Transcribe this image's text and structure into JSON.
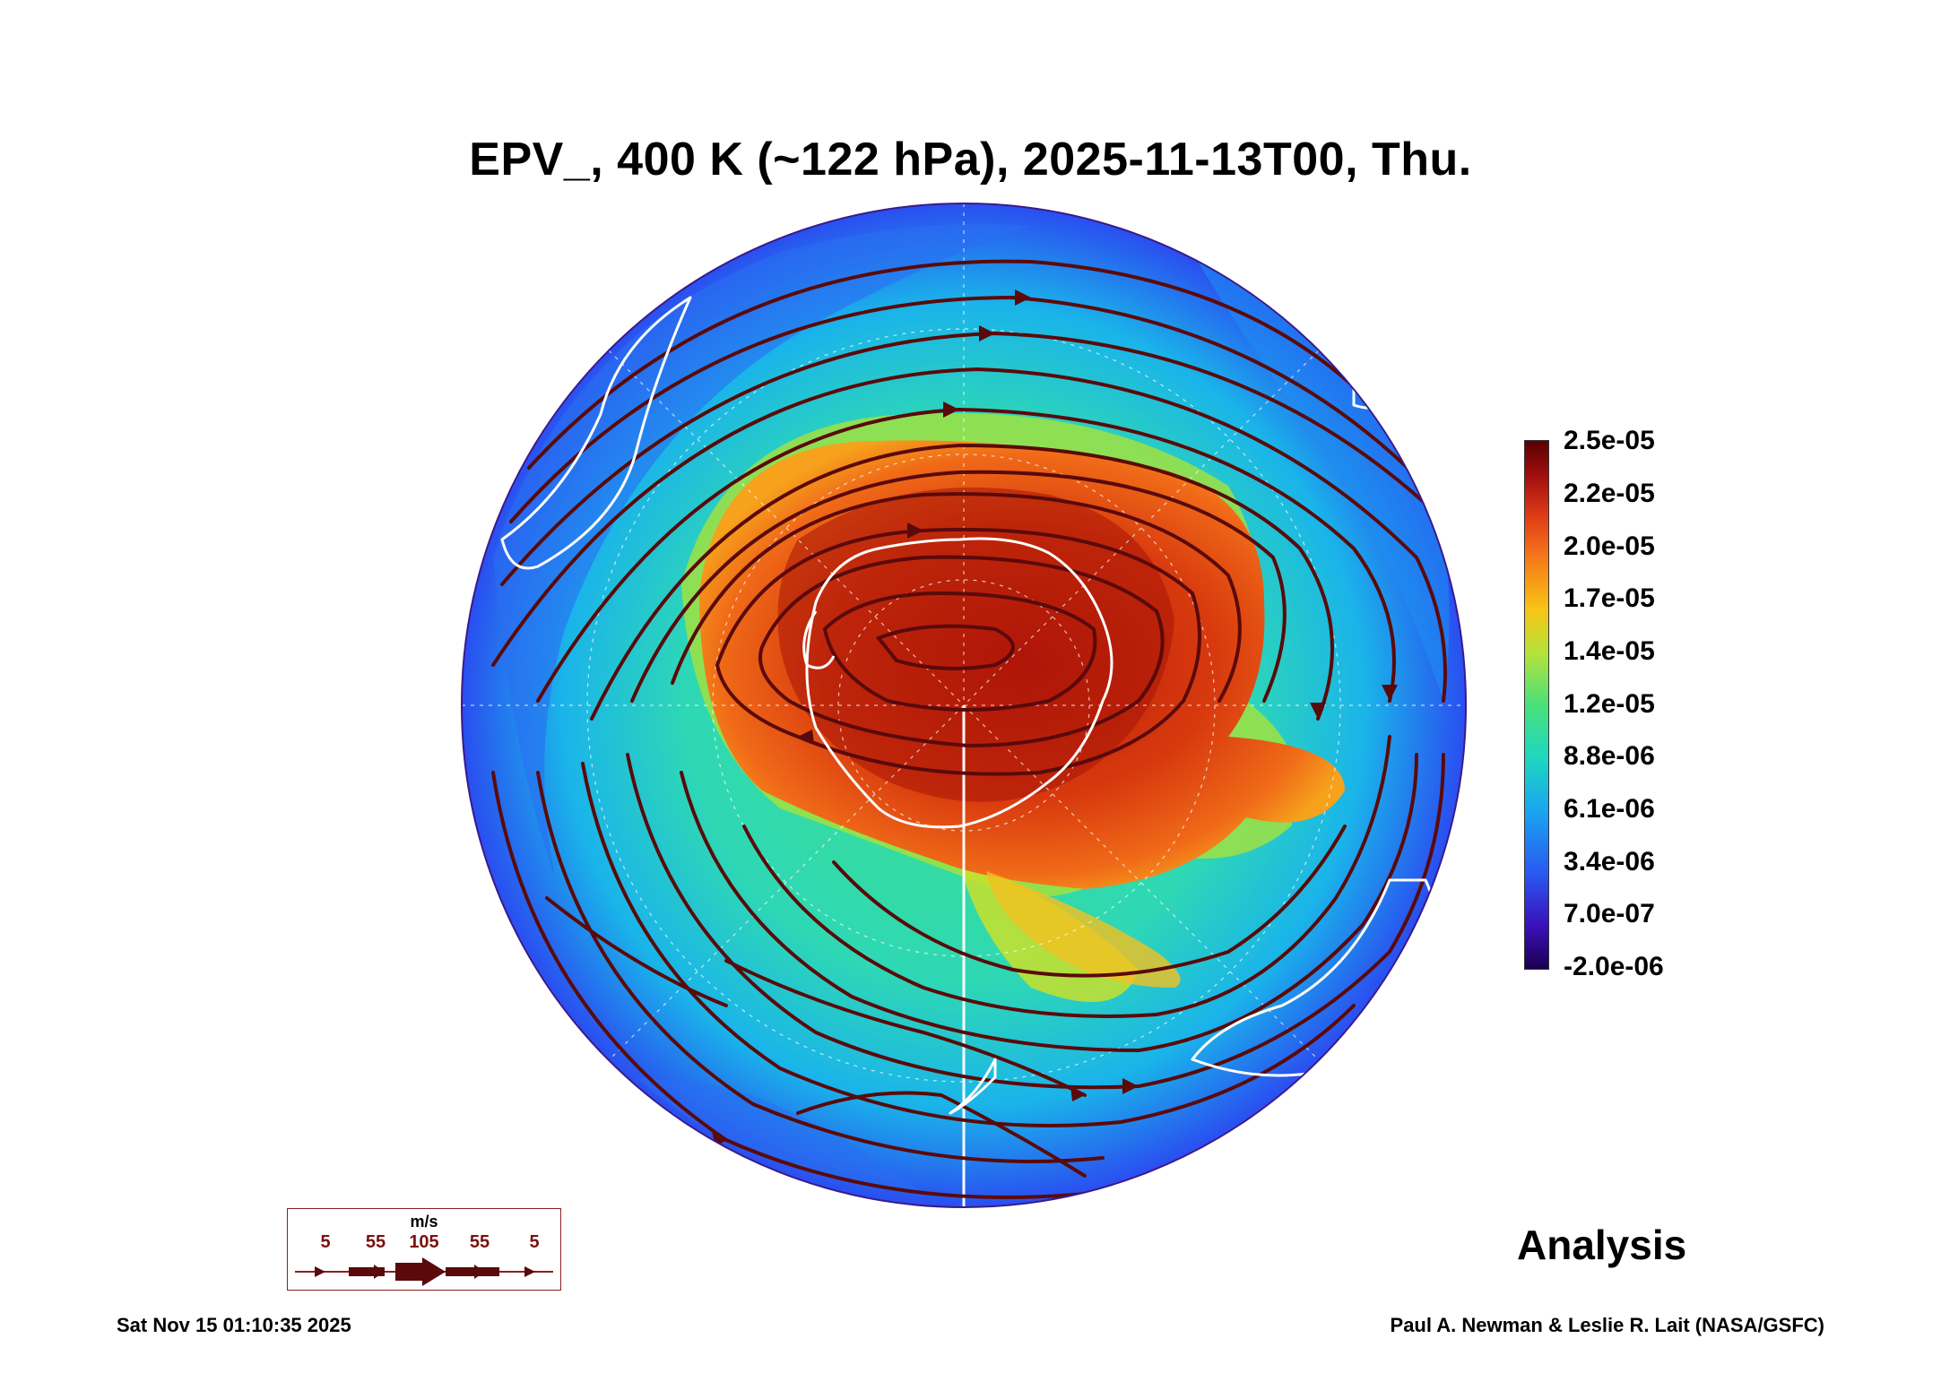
{
  "title": "EPV_, 400 K (~122 hPa), 2025-11-13T00, Thu.",
  "colorbar": {
    "ticks": [
      "2.5e-05",
      "2.2e-05",
      "2.0e-05",
      "1.7e-05",
      "1.4e-05",
      "1.2e-05",
      "8.8e-06",
      "6.1e-06",
      "3.4e-06",
      "7.0e-07",
      "-2.0e-06"
    ]
  },
  "legend": {
    "unit": "m/s",
    "speeds": [
      "5",
      "55",
      "105",
      "55",
      "5"
    ]
  },
  "label": "Analysis",
  "timestamp": "Sat Nov 15 01:10:35 2025",
  "credit": "Paul A. Newman & Leslie R. Lait (NASA/GSFC)",
  "colors": {
    "high_pv": "#c42a0c",
    "mid_pv": "#44dc88",
    "low_pv": "#2a58f0",
    "streamline": "#5a0a0a",
    "coastline": "#ffffff"
  }
}
